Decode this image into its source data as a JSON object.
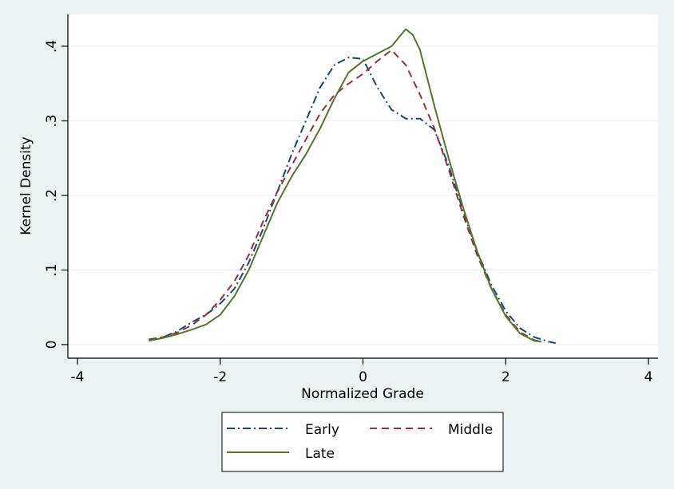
{
  "chart_data": {
    "type": "line",
    "xlabel": "Normalized Grade",
    "ylabel": "Kernel Density",
    "xlim": [
      -4,
      4
    ],
    "ylim": [
      0,
      0.42
    ],
    "x_ticks": [
      -4,
      -2,
      0,
      2,
      4
    ],
    "x_tick_labels": [
      "-4",
      "-2",
      "0",
      "2",
      "4"
    ],
    "y_ticks": [
      0,
      0.1,
      0.2,
      0.3,
      0.4
    ],
    "y_tick_labels": [
      "0",
      ".1",
      ".2",
      ".3",
      ".4"
    ],
    "grid": "horizontal",
    "legend_position": "bottom",
    "series": [
      {
        "name": "Early",
        "color": "#1a476f",
        "dash": "dash-dot",
        "points": [
          [
            -3.0,
            0.007
          ],
          [
            -2.8,
            0.01
          ],
          [
            -2.6,
            0.018
          ],
          [
            -2.4,
            0.03
          ],
          [
            -2.2,
            0.04
          ],
          [
            -2.0,
            0.055
          ],
          [
            -1.8,
            0.075
          ],
          [
            -1.6,
            0.11
          ],
          [
            -1.4,
            0.155
          ],
          [
            -1.2,
            0.205
          ],
          [
            -1.0,
            0.255
          ],
          [
            -0.8,
            0.3
          ],
          [
            -0.6,
            0.345
          ],
          [
            -0.4,
            0.375
          ],
          [
            -0.2,
            0.385
          ],
          [
            0.0,
            0.383
          ],
          [
            0.2,
            0.345
          ],
          [
            0.4,
            0.315
          ],
          [
            0.6,
            0.303
          ],
          [
            0.8,
            0.303
          ],
          [
            1.0,
            0.288
          ],
          [
            1.2,
            0.24
          ],
          [
            1.4,
            0.18
          ],
          [
            1.6,
            0.125
          ],
          [
            1.8,
            0.08
          ],
          [
            2.0,
            0.045
          ],
          [
            2.2,
            0.022
          ],
          [
            2.4,
            0.01
          ],
          [
            2.6,
            0.004
          ],
          [
            2.7,
            0.002
          ]
        ]
      },
      {
        "name": "Middle",
        "color": "#90353b",
        "dash": "dash",
        "points": [
          [
            -3.0,
            0.006
          ],
          [
            -2.8,
            0.01
          ],
          [
            -2.6,
            0.016
          ],
          [
            -2.4,
            0.026
          ],
          [
            -2.2,
            0.04
          ],
          [
            -2.0,
            0.06
          ],
          [
            -1.8,
            0.085
          ],
          [
            -1.6,
            0.12
          ],
          [
            -1.4,
            0.165
          ],
          [
            -1.2,
            0.205
          ],
          [
            -1.0,
            0.24
          ],
          [
            -0.8,
            0.275
          ],
          [
            -0.6,
            0.31
          ],
          [
            -0.4,
            0.335
          ],
          [
            -0.2,
            0.35
          ],
          [
            0.0,
            0.363
          ],
          [
            0.2,
            0.38
          ],
          [
            0.4,
            0.395
          ],
          [
            0.6,
            0.375
          ],
          [
            0.8,
            0.335
          ],
          [
            1.0,
            0.29
          ],
          [
            1.2,
            0.235
          ],
          [
            1.4,
            0.175
          ],
          [
            1.6,
            0.12
          ],
          [
            1.8,
            0.075
          ],
          [
            2.0,
            0.04
          ],
          [
            2.2,
            0.017
          ],
          [
            2.4,
            0.006
          ],
          [
            2.5,
            0.004
          ]
        ]
      },
      {
        "name": "Late",
        "color": "#55752f",
        "dash": "solid",
        "points": [
          [
            -3.0,
            0.005
          ],
          [
            -2.8,
            0.009
          ],
          [
            -2.6,
            0.014
          ],
          [
            -2.4,
            0.02
          ],
          [
            -2.2,
            0.027
          ],
          [
            -2.0,
            0.04
          ],
          [
            -1.8,
            0.065
          ],
          [
            -1.6,
            0.1
          ],
          [
            -1.4,
            0.145
          ],
          [
            -1.2,
            0.19
          ],
          [
            -1.0,
            0.225
          ],
          [
            -0.8,
            0.255
          ],
          [
            -0.6,
            0.29
          ],
          [
            -0.4,
            0.33
          ],
          [
            -0.2,
            0.365
          ],
          [
            0.0,
            0.38
          ],
          [
            0.2,
            0.39
          ],
          [
            0.4,
            0.4
          ],
          [
            0.6,
            0.423
          ],
          [
            0.7,
            0.415
          ],
          [
            0.8,
            0.395
          ],
          [
            1.0,
            0.32
          ],
          [
            1.2,
            0.25
          ],
          [
            1.4,
            0.185
          ],
          [
            1.6,
            0.125
          ],
          [
            1.8,
            0.075
          ],
          [
            2.0,
            0.038
          ],
          [
            2.2,
            0.015
          ],
          [
            2.4,
            0.005
          ],
          [
            2.5,
            0.004
          ]
        ]
      }
    ]
  }
}
